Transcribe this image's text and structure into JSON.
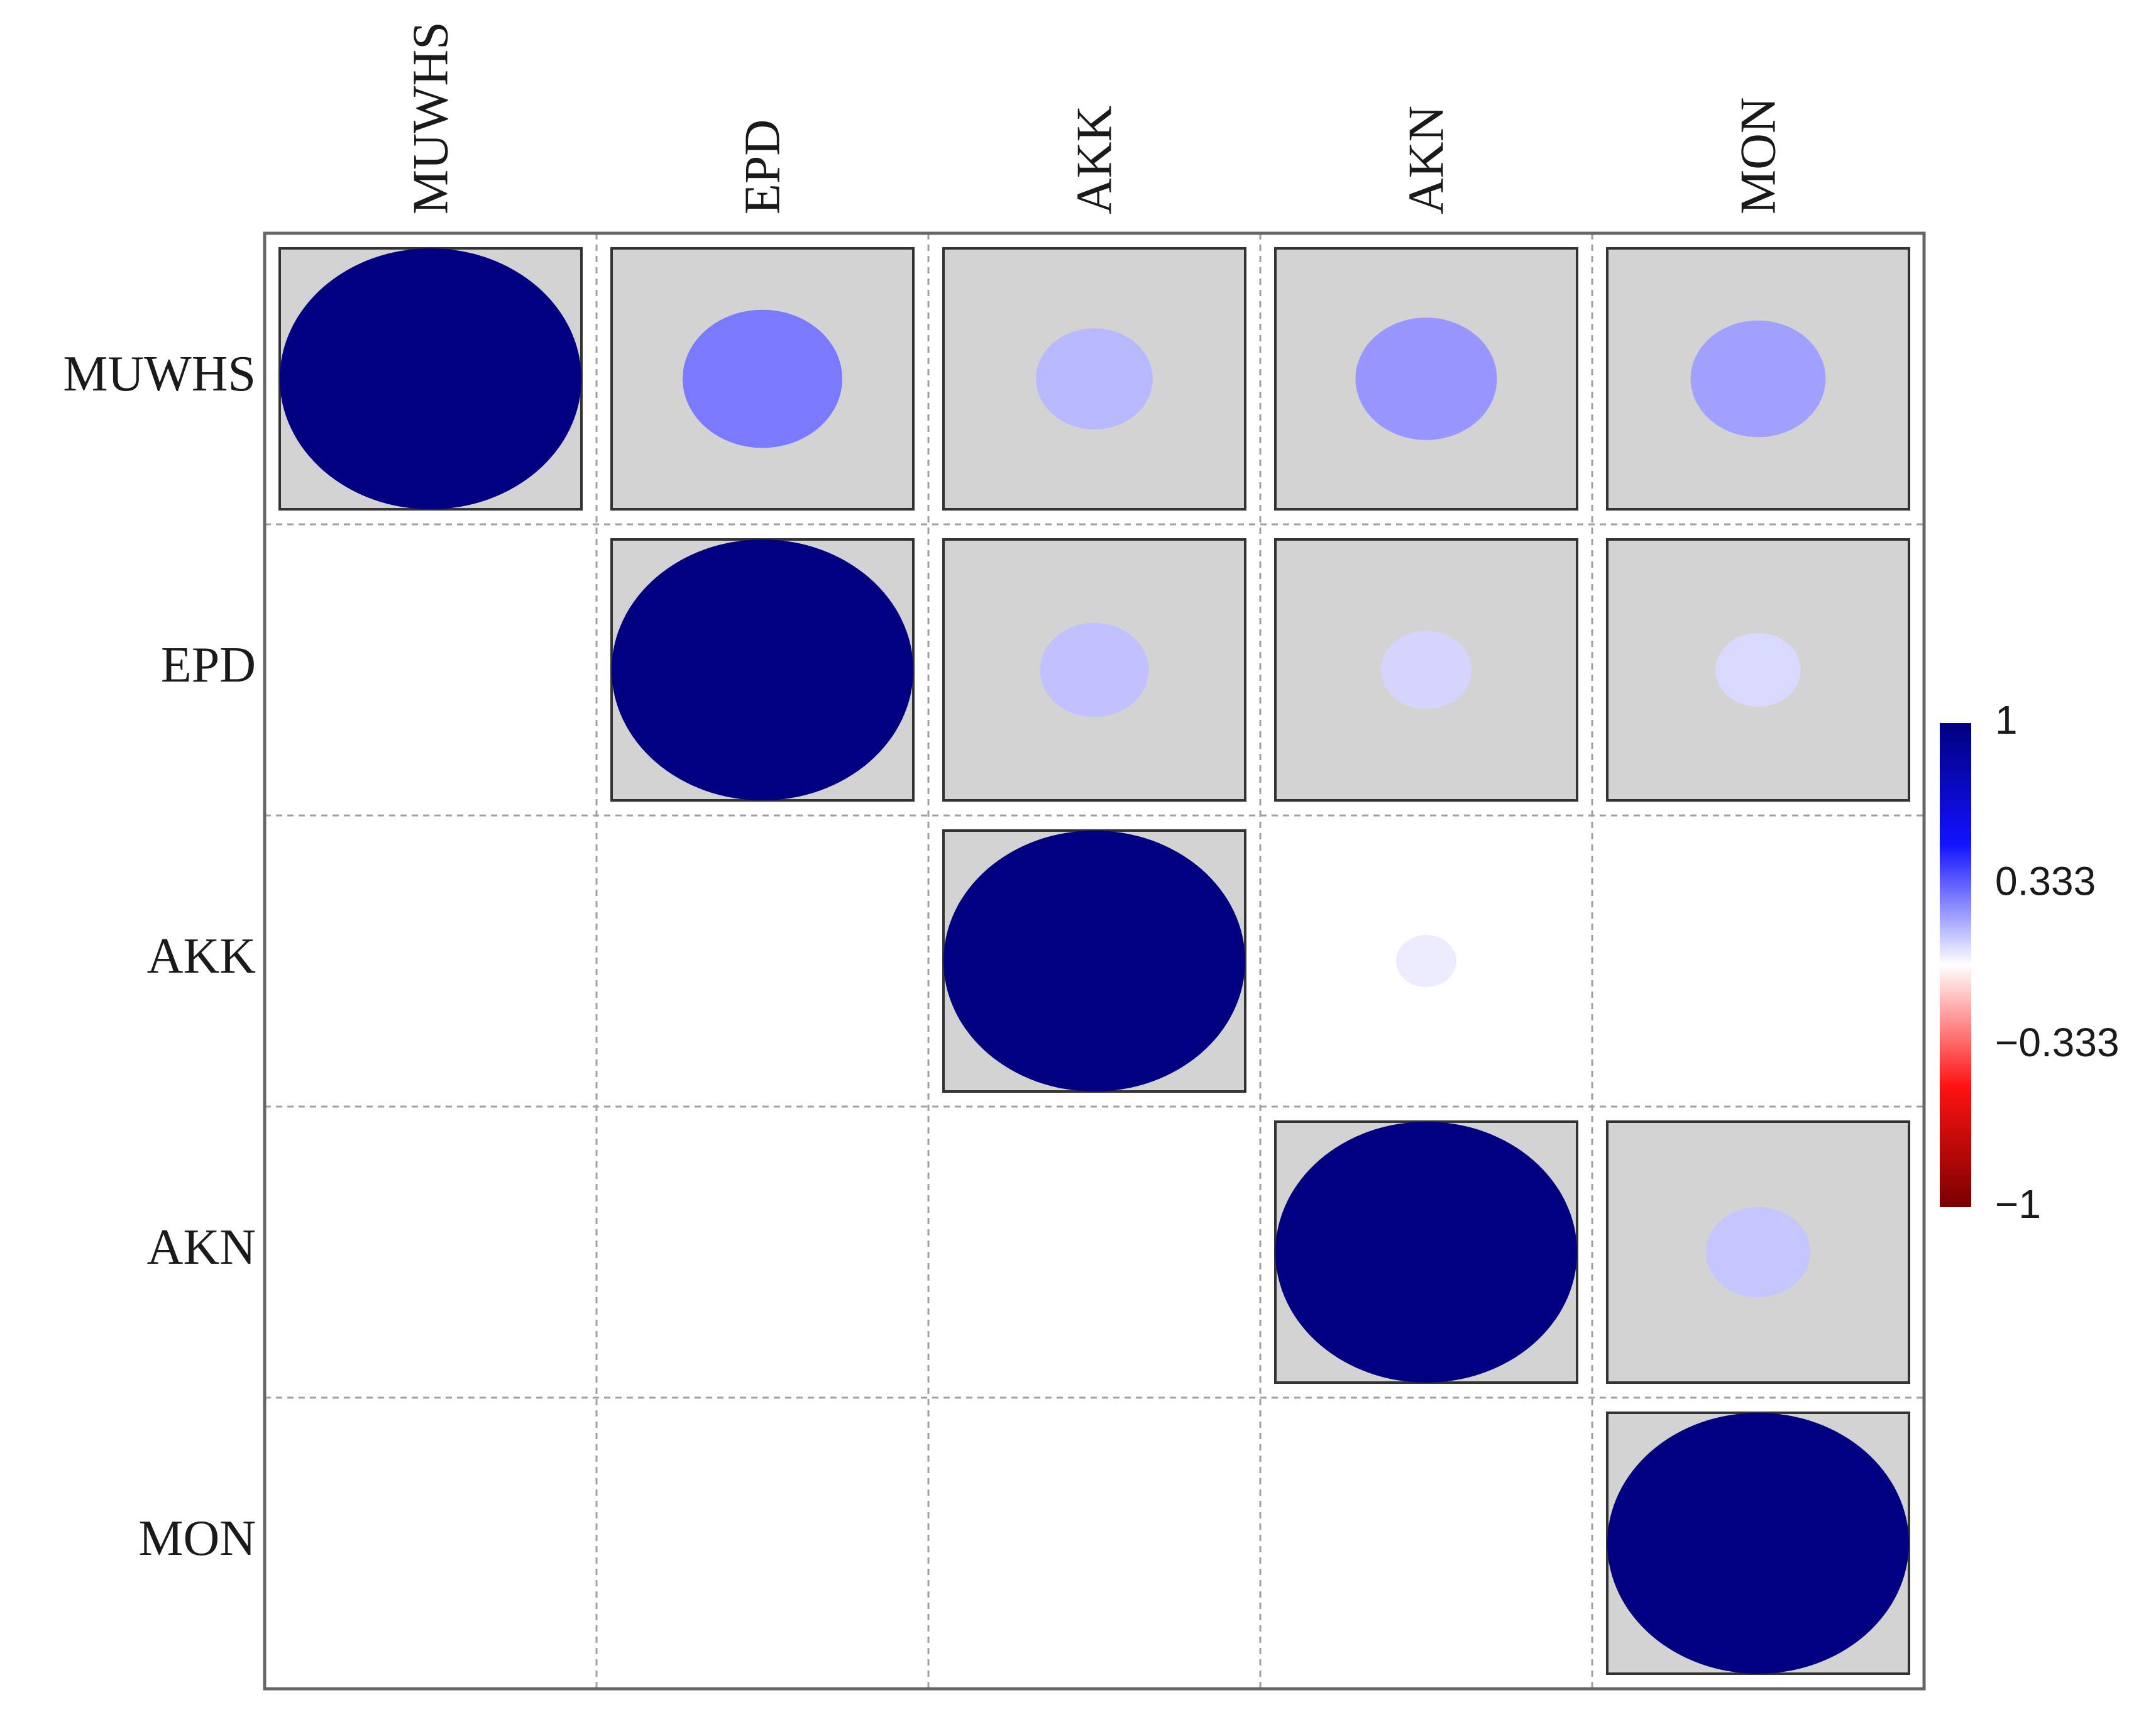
{
  "chart_data": {
    "type": "heatmap",
    "style": "correlogram-circles",
    "shape": "upper-triangular",
    "variables": [
      "MUWHS",
      "EPD",
      "AKK",
      "AKN",
      "MON"
    ],
    "matrix": [
      [
        1.0,
        0.28,
        0.15,
        0.22,
        0.2
      ],
      [
        null,
        1.0,
        0.13,
        0.09,
        0.08
      ],
      [
        null,
        null,
        1.0,
        0.04,
        null
      ],
      [
        null,
        null,
        null,
        1.0,
        0.12
      ],
      [
        null,
        null,
        null,
        null,
        1.0
      ]
    ],
    "significant": [
      [
        true,
        true,
        true,
        true,
        true
      ],
      [
        false,
        true,
        true,
        true,
        true
      ],
      [
        false,
        false,
        true,
        false,
        false
      ],
      [
        false,
        false,
        false,
        true,
        true
      ],
      [
        false,
        false,
        false,
        false,
        true
      ]
    ],
    "colorbar": {
      "range": [
        -1,
        1
      ],
      "tick_labels": [
        "1",
        "0.333",
        "−0.333",
        "−1"
      ],
      "tick_values": [
        1,
        0.333,
        -0.333,
        -1
      ],
      "colors": [
        "#000080",
        "#1212ff",
        "#ffffff",
        "#ff1212",
        "#7a0000"
      ]
    },
    "colors": {
      "significant_background": "#d3d3d3",
      "grid_dashed": "#a0a0a0",
      "border": "#333333"
    }
  }
}
